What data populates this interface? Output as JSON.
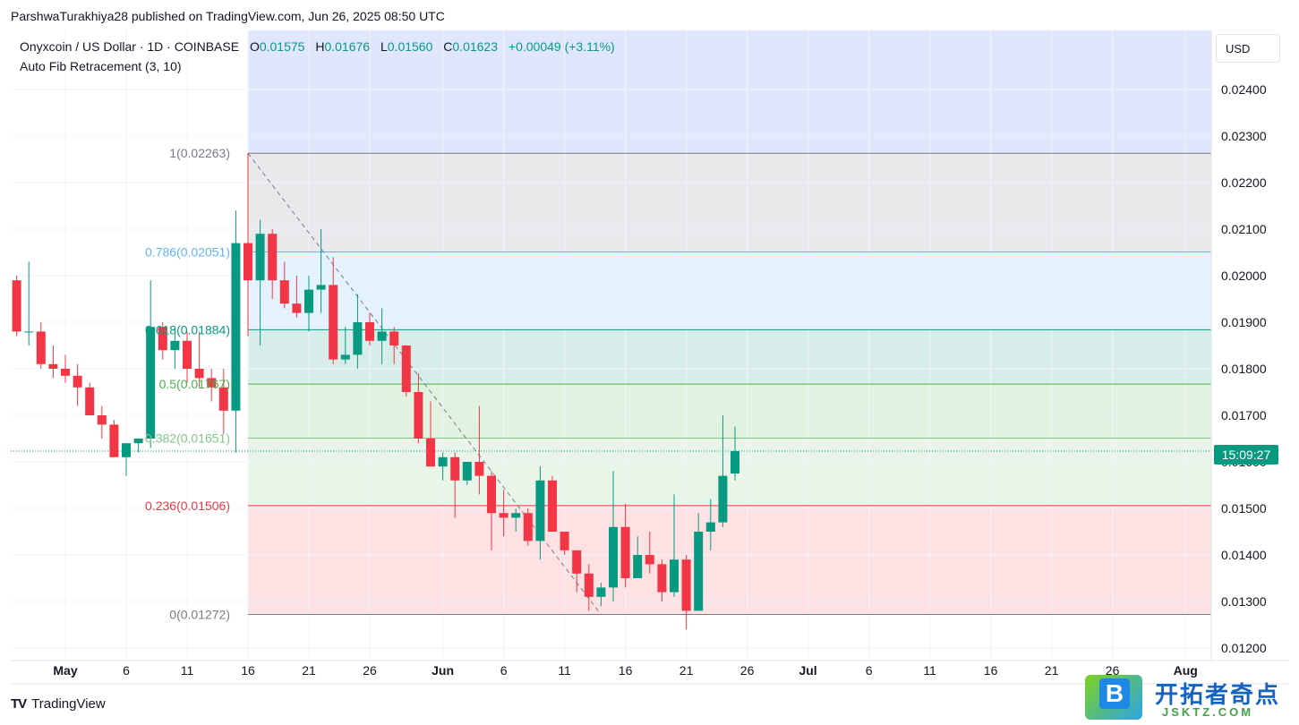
{
  "header": {
    "published": "ParshwaTurakhiya28 published on TradingView.com, Jun 26, 2025 08:50 UTC"
  },
  "legend": {
    "symbol": "Onyxcoin / US Dollar · 1D · COINBASE",
    "o_label": "O",
    "o_value": "0.01575",
    "h_label": "H",
    "h_value": "0.01676",
    "l_label": "L",
    "l_value": "0.01560",
    "c_label": "C",
    "c_value": "0.01623",
    "change": "+0.00049 (+3.11%)",
    "indicator": "Auto Fib Retracement (3, 10)"
  },
  "currency": "USD",
  "price_tag": "15:09:27",
  "footer": {
    "logo_text": "TradingView",
    "logo_mark": "TV"
  },
  "watermark": {
    "letter": "B",
    "title": "开拓者奇点",
    "subtitle": "JSKTZ.COM"
  },
  "colors": {
    "up": "#089981",
    "down": "#f23645",
    "accent": "#2962ff"
  },
  "chart_data": {
    "type": "candlestick",
    "title": "Onyxcoin / US Dollar · 1D · COINBASE",
    "xlabel": "",
    "ylabel": "",
    "ylim": [
      0.0118,
      0.025
    ],
    "y_ticks": [
      "0.02400",
      "0.02300",
      "0.02200",
      "0.02100",
      "0.02000",
      "0.01900",
      "0.01800",
      "0.01700",
      "0.01600",
      "0.01500",
      "0.01400",
      "0.01300",
      "0.01200"
    ],
    "x_ticks": [
      {
        "label": "May",
        "day": 0
      },
      {
        "label": "6",
        "day": 5
      },
      {
        "label": "11",
        "day": 10
      },
      {
        "label": "16",
        "day": 15
      },
      {
        "label": "21",
        "day": 20
      },
      {
        "label": "26",
        "day": 25
      },
      {
        "label": "Jun",
        "day": 31
      },
      {
        "label": "6",
        "day": 36
      },
      {
        "label": "11",
        "day": 41
      },
      {
        "label": "16",
        "day": 46
      },
      {
        "label": "21",
        "day": 51
      },
      {
        "label": "26",
        "day": 56
      },
      {
        "label": "Jul",
        "day": 61
      },
      {
        "label": "6",
        "day": 66
      },
      {
        "label": "11",
        "day": 71
      },
      {
        "label": "16",
        "day": 76
      },
      {
        "label": "21",
        "day": 81
      },
      {
        "label": "26",
        "day": 86
      },
      {
        "label": "Aug",
        "day": 92
      }
    ],
    "fib_levels": [
      {
        "label": "1(0.02263)",
        "value": 0.02263,
        "color": "#787b86",
        "fill": "#e9e9ec"
      },
      {
        "label": "0.786(0.02051)",
        "value": 0.02051,
        "color": "#64b5f6",
        "fill": "#e3f2fd"
      },
      {
        "label": "0.618(0.01884)",
        "value": 0.01884,
        "color": "#089981",
        "fill": "#d7ede9"
      },
      {
        "label": "0.5(0.01767)",
        "value": 0.01767,
        "color": "#4caf50",
        "fill": "#e1f2e1"
      },
      {
        "label": "0.382(0.01651)",
        "value": 0.01651,
        "color": "#81c784",
        "fill": "#eaf5ea"
      },
      {
        "label": "0.236(0.01506)",
        "value": 0.01506,
        "color": "#f23645",
        "fill": "#fde1e3"
      },
      {
        "label": "0(0.01272)",
        "value": 0.01272,
        "color": "#787b86",
        "fill": null
      }
    ],
    "above_fill": "#e0e6fc",
    "fib_start_day": 15,
    "trend_line": [
      {
        "day": 15,
        "price": 0.02263
      },
      {
        "day": 44,
        "price": 0.01272
      }
    ],
    "last_price": 0.01623,
    "candles": [
      {
        "day": -4,
        "o": 0.0199,
        "h": 0.02,
        "l": 0.0187,
        "c": 0.0188
      },
      {
        "day": -3,
        "o": 0.0188,
        "h": 0.0203,
        "l": 0.0185,
        "c": 0.0188
      },
      {
        "day": -2,
        "o": 0.0188,
        "h": 0.019,
        "l": 0.018,
        "c": 0.0181
      },
      {
        "day": -1,
        "o": 0.0181,
        "h": 0.0185,
        "l": 0.0178,
        "c": 0.018
      },
      {
        "day": 0,
        "o": 0.018,
        "h": 0.0183,
        "l": 0.0177,
        "c": 0.01785
      },
      {
        "day": 1,
        "o": 0.01785,
        "h": 0.0181,
        "l": 0.0172,
        "c": 0.0176
      },
      {
        "day": 2,
        "o": 0.0176,
        "h": 0.0177,
        "l": 0.017,
        "c": 0.017
      },
      {
        "day": 3,
        "o": 0.017,
        "h": 0.0172,
        "l": 0.0165,
        "c": 0.0168
      },
      {
        "day": 4,
        "o": 0.0168,
        "h": 0.0169,
        "l": 0.0161,
        "c": 0.0161
      },
      {
        "day": 5,
        "o": 0.0161,
        "h": 0.0164,
        "l": 0.0157,
        "c": 0.0164
      },
      {
        "day": 6,
        "o": 0.0164,
        "h": 0.0165,
        "l": 0.0162,
        "c": 0.0165
      },
      {
        "day": 7,
        "o": 0.0165,
        "h": 0.0199,
        "l": 0.0163,
        "c": 0.0189
      },
      {
        "day": 8,
        "o": 0.0189,
        "h": 0.019,
        "l": 0.0182,
        "c": 0.0184
      },
      {
        "day": 9,
        "o": 0.0184,
        "h": 0.0189,
        "l": 0.018,
        "c": 0.0186
      },
      {
        "day": 10,
        "o": 0.0186,
        "h": 0.0188,
        "l": 0.0177,
        "c": 0.018
      },
      {
        "day": 11,
        "o": 0.018,
        "h": 0.0188,
        "l": 0.0176,
        "c": 0.0178
      },
      {
        "day": 12,
        "o": 0.0178,
        "h": 0.018,
        "l": 0.0173,
        "c": 0.0176
      },
      {
        "day": 13,
        "o": 0.0176,
        "h": 0.018,
        "l": 0.0166,
        "c": 0.0171
      },
      {
        "day": 14,
        "o": 0.0171,
        "h": 0.0214,
        "l": 0.0162,
        "c": 0.0207
      },
      {
        "day": 15,
        "o": 0.0207,
        "h": 0.02263,
        "l": 0.0187,
        "c": 0.0199
      },
      {
        "day": 16,
        "o": 0.0199,
        "h": 0.0212,
        "l": 0.0185,
        "c": 0.0209
      },
      {
        "day": 17,
        "o": 0.0209,
        "h": 0.021,
        "l": 0.0195,
        "c": 0.0199
      },
      {
        "day": 18,
        "o": 0.0199,
        "h": 0.0203,
        "l": 0.0193,
        "c": 0.0194
      },
      {
        "day": 19,
        "o": 0.0194,
        "h": 0.02,
        "l": 0.0191,
        "c": 0.0192
      },
      {
        "day": 20,
        "o": 0.0192,
        "h": 0.02,
        "l": 0.0188,
        "c": 0.0197
      },
      {
        "day": 21,
        "o": 0.0197,
        "h": 0.021,
        "l": 0.0192,
        "c": 0.0198
      },
      {
        "day": 22,
        "o": 0.0198,
        "h": 0.0204,
        "l": 0.0181,
        "c": 0.0182
      },
      {
        "day": 23,
        "o": 0.0182,
        "h": 0.0189,
        "l": 0.0181,
        "c": 0.0183
      },
      {
        "day": 24,
        "o": 0.0183,
        "h": 0.0196,
        "l": 0.018,
        "c": 0.019
      },
      {
        "day": 25,
        "o": 0.019,
        "h": 0.0192,
        "l": 0.0185,
        "c": 0.0186
      },
      {
        "day": 26,
        "o": 0.0186,
        "h": 0.0193,
        "l": 0.0181,
        "c": 0.0188
      },
      {
        "day": 27,
        "o": 0.0188,
        "h": 0.0189,
        "l": 0.0181,
        "c": 0.0185
      },
      {
        "day": 28,
        "o": 0.0185,
        "h": 0.0185,
        "l": 0.0174,
        "c": 0.0175
      },
      {
        "day": 29,
        "o": 0.0175,
        "h": 0.0179,
        "l": 0.0164,
        "c": 0.0165
      },
      {
        "day": 30,
        "o": 0.0165,
        "h": 0.0173,
        "l": 0.0159,
        "c": 0.0159
      },
      {
        "day": 31,
        "o": 0.0159,
        "h": 0.0162,
        "l": 0.0156,
        "c": 0.0161
      },
      {
        "day": 32,
        "o": 0.0161,
        "h": 0.0162,
        "l": 0.0148,
        "c": 0.0156
      },
      {
        "day": 33,
        "o": 0.0156,
        "h": 0.0159,
        "l": 0.0155,
        "c": 0.016
      },
      {
        "day": 34,
        "o": 0.016,
        "h": 0.0172,
        "l": 0.0153,
        "c": 0.0157
      },
      {
        "day": 35,
        "o": 0.0157,
        "h": 0.0158,
        "l": 0.0141,
        "c": 0.0149
      },
      {
        "day": 36,
        "o": 0.0149,
        "h": 0.0154,
        "l": 0.0144,
        "c": 0.0148
      },
      {
        "day": 37,
        "o": 0.0148,
        "h": 0.015,
        "l": 0.0145,
        "c": 0.0149
      },
      {
        "day": 38,
        "o": 0.0149,
        "h": 0.015,
        "l": 0.0142,
        "c": 0.0143
      },
      {
        "day": 39,
        "o": 0.0143,
        "h": 0.0159,
        "l": 0.0139,
        "c": 0.0156
      },
      {
        "day": 40,
        "o": 0.0156,
        "h": 0.0157,
        "l": 0.0145,
        "c": 0.0145
      },
      {
        "day": 41,
        "o": 0.0145,
        "h": 0.0145,
        "l": 0.014,
        "c": 0.0141
      },
      {
        "day": 42,
        "o": 0.0141,
        "h": 0.0141,
        "l": 0.0132,
        "c": 0.0136
      },
      {
        "day": 43,
        "o": 0.0136,
        "h": 0.0138,
        "l": 0.0128,
        "c": 0.0131
      },
      {
        "day": 44,
        "o": 0.0131,
        "h": 0.0134,
        "l": 0.0129,
        "c": 0.0133
      },
      {
        "day": 45,
        "o": 0.0133,
        "h": 0.0158,
        "l": 0.013,
        "c": 0.0146
      },
      {
        "day": 46,
        "o": 0.0146,
        "h": 0.0151,
        "l": 0.0133,
        "c": 0.0135
      },
      {
        "day": 47,
        "o": 0.0135,
        "h": 0.0144,
        "l": 0.0135,
        "c": 0.014
      },
      {
        "day": 48,
        "o": 0.014,
        "h": 0.0145,
        "l": 0.0136,
        "c": 0.0138
      },
      {
        "day": 49,
        "o": 0.0138,
        "h": 0.0139,
        "l": 0.013,
        "c": 0.0132
      },
      {
        "day": 50,
        "o": 0.0132,
        "h": 0.0153,
        "l": 0.0131,
        "c": 0.0139
      },
      {
        "day": 51,
        "o": 0.0139,
        "h": 0.014,
        "l": 0.0124,
        "c": 0.0128
      },
      {
        "day": 52,
        "o": 0.0128,
        "h": 0.0149,
        "l": 0.0128,
        "c": 0.0145
      },
      {
        "day": 53,
        "o": 0.0145,
        "h": 0.0152,
        "l": 0.0141,
        "c": 0.0147
      },
      {
        "day": 54,
        "o": 0.0147,
        "h": 0.017,
        "l": 0.0146,
        "c": 0.0157
      },
      {
        "day": 55,
        "o": 0.01575,
        "h": 0.01676,
        "l": 0.0156,
        "c": 0.01623
      }
    ]
  }
}
